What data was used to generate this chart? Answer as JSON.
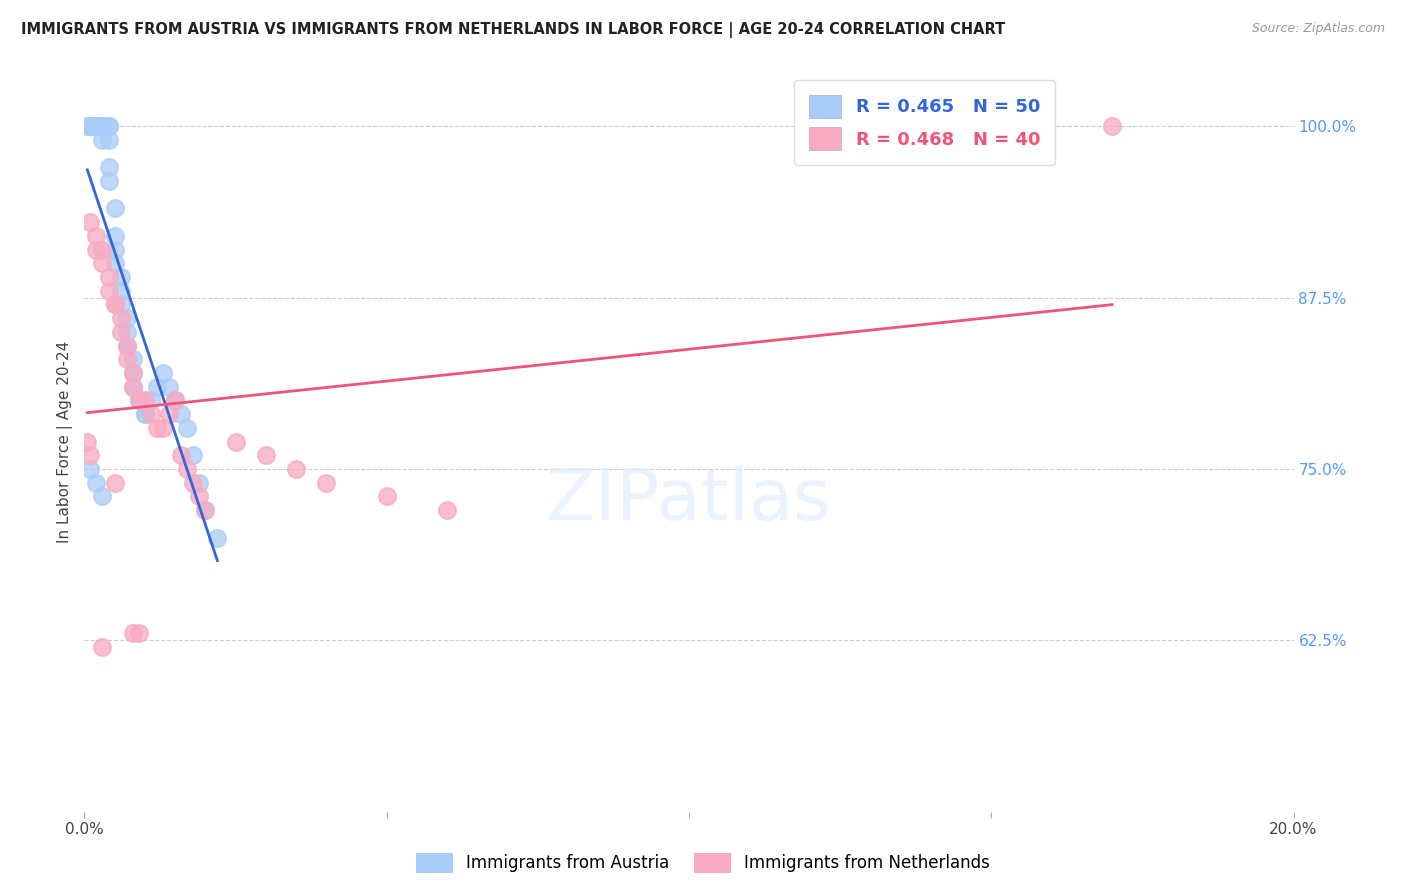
{
  "title": "IMMIGRANTS FROM AUSTRIA VS IMMIGRANTS FROM NETHERLANDS IN LABOR FORCE | AGE 20-24 CORRELATION CHART",
  "source": "Source: ZipAtlas.com",
  "ylabel": "In Labor Force | Age 20-24",
  "austria_R": 0.465,
  "austria_N": 50,
  "netherlands_R": 0.468,
  "netherlands_N": 40,
  "austria_color": "#aaccf8",
  "netherlands_color": "#f8aac0",
  "austria_line_color": "#3366dd",
  "netherlands_line_color": "#ee5577",
  "background_color": "#ffffff",
  "xlim": [
    0.0,
    0.2
  ],
  "ylim": [
    0.5,
    1.04
  ],
  "yticks": [
    0.625,
    0.75,
    0.875,
    1.0
  ],
  "ytick_labels": [
    "62.5%",
    "75.0%",
    "87.5%",
    "100.0%"
  ],
  "xticks": [
    0.0,
    0.05,
    0.1,
    0.15,
    0.2
  ],
  "xtick_labels": [
    "0.0%",
    "",
    "",
    "",
    "20.0%"
  ],
  "austria_x": [
    0.0005,
    0.001,
    0.001,
    0.001,
    0.002,
    0.002,
    0.002,
    0.002,
    0.003,
    0.003,
    0.003,
    0.003,
    0.003,
    0.004,
    0.004,
    0.004,
    0.004,
    0.004,
    0.005,
    0.005,
    0.005,
    0.005,
    0.006,
    0.006,
    0.006,
    0.007,
    0.007,
    0.007,
    0.007,
    0.008,
    0.008,
    0.008,
    0.009,
    0.009,
    0.01,
    0.01,
    0.011,
    0.012,
    0.013,
    0.014,
    0.015,
    0.016,
    0.017,
    0.018,
    0.019,
    0.02,
    0.022,
    0.001,
    0.002,
    0.003
  ],
  "austria_y": [
    1.0,
    1.0,
    1.0,
    1.0,
    1.0,
    1.0,
    1.0,
    1.0,
    1.0,
    1.0,
    1.0,
    1.0,
    0.99,
    1.0,
    1.0,
    0.99,
    0.97,
    0.96,
    0.94,
    0.92,
    0.91,
    0.9,
    0.89,
    0.88,
    0.87,
    0.86,
    0.85,
    0.84,
    0.84,
    0.83,
    0.82,
    0.81,
    0.8,
    0.8,
    0.79,
    0.79,
    0.8,
    0.81,
    0.82,
    0.81,
    0.8,
    0.79,
    0.78,
    0.76,
    0.74,
    0.72,
    0.7,
    0.75,
    0.74,
    0.73
  ],
  "netherlands_x": [
    0.0005,
    0.001,
    0.001,
    0.002,
    0.002,
    0.003,
    0.003,
    0.004,
    0.004,
    0.005,
    0.005,
    0.006,
    0.006,
    0.007,
    0.007,
    0.008,
    0.008,
    0.009,
    0.01,
    0.011,
    0.012,
    0.013,
    0.014,
    0.015,
    0.016,
    0.017,
    0.018,
    0.019,
    0.02,
    0.025,
    0.03,
    0.035,
    0.04,
    0.05,
    0.06,
    0.008,
    0.009,
    0.003,
    0.005,
    0.17
  ],
  "netherlands_y": [
    0.77,
    0.76,
    0.93,
    0.92,
    0.91,
    0.91,
    0.9,
    0.89,
    0.88,
    0.87,
    0.87,
    0.86,
    0.85,
    0.84,
    0.83,
    0.82,
    0.81,
    0.8,
    0.8,
    0.79,
    0.78,
    0.78,
    0.79,
    0.8,
    0.76,
    0.75,
    0.74,
    0.73,
    0.72,
    0.77,
    0.76,
    0.75,
    0.74,
    0.73,
    0.72,
    0.63,
    0.63,
    0.62,
    0.74,
    1.0
  ]
}
